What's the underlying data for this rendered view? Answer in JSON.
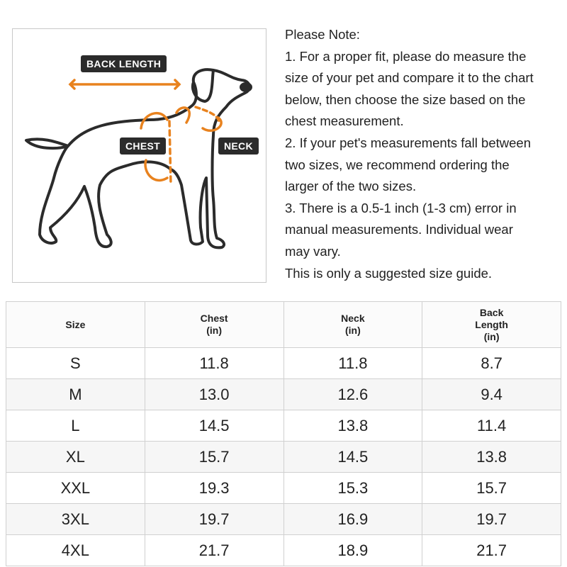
{
  "figure": {
    "labels": {
      "back_length": "BACK LENGTH",
      "chest": "CHEST",
      "neck": "NECK"
    },
    "colors": {
      "accent": "#E8821E",
      "outline": "#2b2b2b"
    }
  },
  "notes": {
    "lines": [
      "Please Note:",
      "1. For a proper fit, please do measure the",
      "size of your pet and compare it to the chart",
      "below, then choose the size based on the",
      "chest measurement.",
      "2. If your pet's measurements fall between",
      "two sizes, we recommend ordering the",
      "larger of the two sizes.",
      "3. There is a 0.5-1 inch (1-3 cm) error in",
      "manual measurements. Individual wear",
      "may vary.",
      "This is only a suggested size guide."
    ]
  },
  "table": {
    "headers": [
      [
        "Size"
      ],
      [
        "Chest",
        "(in)"
      ],
      [
        "Neck",
        "(in)"
      ],
      [
        "Back",
        "Length",
        "(in)"
      ]
    ],
    "rows": [
      [
        "S",
        "11.8",
        "11.8",
        "8.7"
      ],
      [
        "M",
        "13.0",
        "12.6",
        "9.4"
      ],
      [
        "L",
        "14.5",
        "13.8",
        "11.4"
      ],
      [
        "XL",
        "15.7",
        "14.5",
        "13.8"
      ],
      [
        "XXL",
        "19.3",
        "15.3",
        "15.7"
      ],
      [
        "3XL",
        "19.7",
        "16.9",
        "19.7"
      ],
      [
        "4XL",
        "21.7",
        "18.9",
        "21.7"
      ]
    ]
  }
}
